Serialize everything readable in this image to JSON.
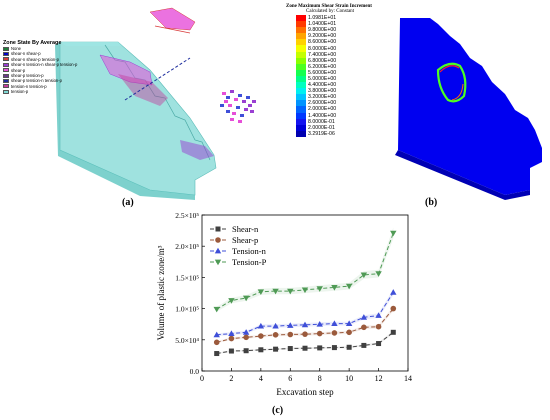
{
  "panel_a": {
    "label": "(a)",
    "legend_title": "Zone State By Average",
    "legend_items": [
      {
        "text": "None",
        "color": "#1f7f3a"
      },
      {
        "text": "shear-n shear-p",
        "color": "#0000c8"
      },
      {
        "text": "shear-n shear-p tension-p",
        "color": "#d83a3a"
      },
      {
        "text": "shear-n tension-n shear-p tension-p",
        "color": "#9a3fd2"
      },
      {
        "text": "shear-p",
        "color": "#e64fd8"
      },
      {
        "text": "shear-p tension-p",
        "color": "#6b3a8a"
      },
      {
        "text": "shear-p tension-n tension-p",
        "color": "#1e2d9e"
      },
      {
        "text": "tension-n tension-p",
        "color": "#c43c9c"
      },
      {
        "text": "tension-p",
        "color": "#7fd8d4"
      }
    ]
  },
  "panel_b": {
    "label": "(b)",
    "legend_title": "Zone Maximum Shear Strain Increment",
    "legend_subtitle": "Calculated by: Constant",
    "scale_values": [
      "1.0981E+01",
      "1.0400E+01",
      "9.8000E+00",
      "9.2000E+00",
      "8.6000E+00",
      "8.0000E+00",
      "7.4000E+00",
      "6.8000E+00",
      "6.2000E+00",
      "5.6000E+00",
      "5.0000E+00",
      "4.4000E+00",
      "3.8000E+00",
      "3.2000E+00",
      "2.6000E+00",
      "2.0000E+00",
      "1.4000E+00",
      "8.0000E-01",
      "2.0000E-01",
      "3.2919E-06"
    ],
    "scale_colors": [
      "#ff0000",
      "#ff3a00",
      "#ff7000",
      "#ffa400",
      "#ffd200",
      "#f4ff00",
      "#c4ff00",
      "#8cff00",
      "#4cff20",
      "#14ff50",
      "#00ff88",
      "#00ffc0",
      "#00f0f0",
      "#00c4ff",
      "#0094ff",
      "#0064ff",
      "#0038ff",
      "#1414f0",
      "#0000d8",
      "#0000b0"
    ]
  },
  "panel_c": {
    "label": "(c)"
  },
  "chart_data": {
    "type": "line",
    "xlabel": "Excavation step",
    "ylabel": "Volume of plastic zone/m³",
    "xlim": [
      0,
      14
    ],
    "ylim": [
      0,
      250000
    ],
    "x_ticks": [
      "0",
      "2",
      "4",
      "6",
      "8",
      "10",
      "12",
      "14"
    ],
    "y_ticks": [
      "0.0",
      "5.0×10⁴",
      "1.0×10⁵",
      "1.5×10⁵",
      "2.0×10⁵",
      "2.5×10⁵"
    ],
    "x": [
      1,
      2,
      3,
      4,
      5,
      6,
      7,
      8,
      9,
      10,
      11,
      12,
      13
    ],
    "legend_position": "top-left",
    "series": [
      {
        "name": "Shear-n",
        "color": "#404040",
        "marker": "square",
        "values": [
          28000,
          32000,
          32500,
          34000,
          35000,
          36000,
          36500,
          37000,
          37500,
          38000,
          41000,
          44000,
          62000
        ]
      },
      {
        "name": "Shear-p",
        "color": "#9b5a3c",
        "marker": "circle",
        "values": [
          46000,
          52000,
          54000,
          56000,
          58000,
          58500,
          59000,
          60000,
          61000,
          62000,
          70000,
          71000,
          100000
        ]
      },
      {
        "name": "Tension-n",
        "color": "#3f4fd8",
        "marker": "triangle-up",
        "values": [
          58000,
          60000,
          62000,
          72000,
          72000,
          73000,
          74000,
          75000,
          76000,
          76000,
          86000,
          89000,
          126000
        ]
      },
      {
        "name": "Tension-P",
        "color": "#4f9a55",
        "marker": "triangle-down",
        "values": [
          99000,
          113000,
          117000,
          127000,
          128000,
          128000,
          130000,
          132000,
          134000,
          136000,
          154000,
          156000,
          221000
        ]
      }
    ]
  }
}
